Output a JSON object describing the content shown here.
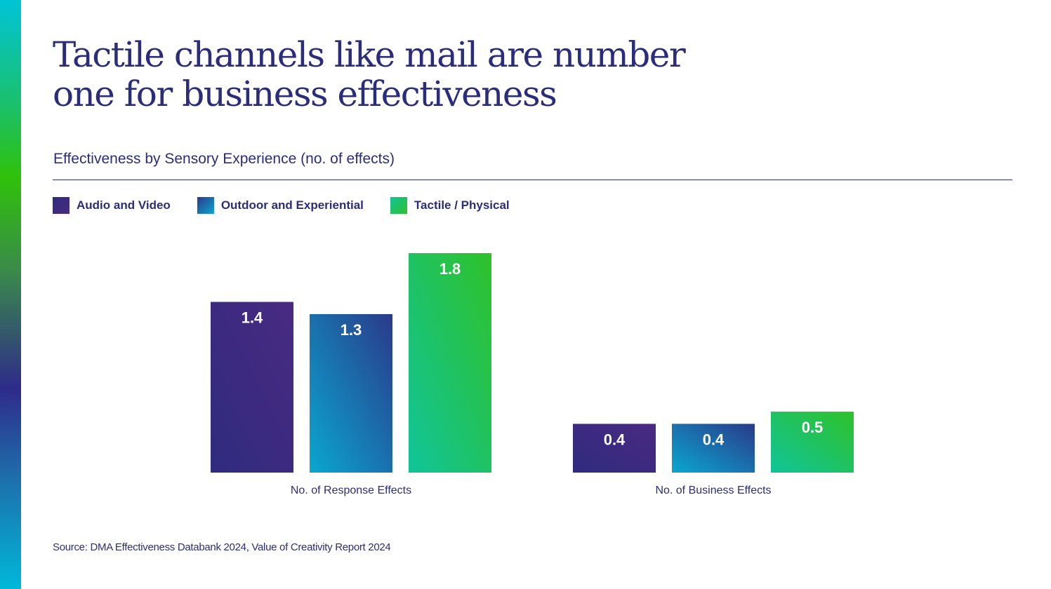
{
  "title_lines": [
    "Tactile channels like mail are number",
    "one for business effectiveness"
  ],
  "subtitle_main": "Effectiveness by Sensory Experience",
  "subtitle_paren": "(no. of effects)",
  "source": "Source: DMA Effectiveness Databank 2024, Value of Creativity Report 2024",
  "colors": {
    "text": "#2b2d7a",
    "audio_video": [
      "#2e2b7e",
      "#4a2a82"
    ],
    "outdoor": [
      "#0aa7d0",
      "#2a3a8a"
    ],
    "tactile": [
      "#10c49a",
      "#2fc12a"
    ]
  },
  "chart_data": {
    "type": "bar",
    "title": "Effectiveness by Sensory Experience (no. of effects)",
    "categories": [
      "No. of Response Effects",
      "No. of Business Effects"
    ],
    "series": [
      {
        "name": "Audio and Video",
        "values": [
          1.4,
          0.4
        ]
      },
      {
        "name": "Outdoor and Experiential",
        "values": [
          1.3,
          0.4
        ]
      },
      {
        "name": "Tactile / Physical",
        "values": [
          1.8,
          0.5
        ]
      }
    ],
    "value_labels": [
      [
        "1.4",
        "0.4"
      ],
      [
        "1.3",
        "0.4"
      ],
      [
        "1.8",
        "0.5"
      ]
    ],
    "ylim": [
      0,
      1.8
    ],
    "xlabel": "",
    "ylabel": "",
    "grid": false,
    "legend": "top-left"
  }
}
